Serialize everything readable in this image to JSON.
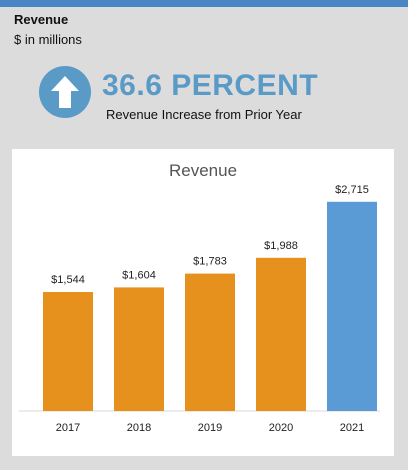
{
  "header": {
    "title": "Revenue",
    "subtitle": "$ in millions"
  },
  "kpi": {
    "icon": "arrow-up-circle-icon",
    "value": "36.6 PERCENT",
    "caption": "Revenue Increase from Prior Year",
    "color": "#5a9ac7"
  },
  "colors": {
    "top_bar": "#4a86c5",
    "bar_default": "#e6901e",
    "bar_highlight": "#5b9bd5"
  },
  "chart_data": {
    "type": "bar",
    "title": "Revenue",
    "categories": [
      "2017",
      "2018",
      "2019",
      "2020",
      "2021"
    ],
    "values": [
      1544,
      1604,
      1783,
      1988,
      2715
    ],
    "value_labels": [
      "$1,544",
      "$1,604",
      "$1,783",
      "$1,988",
      "$2,715"
    ],
    "highlight_index": 4,
    "ylim": [
      0,
      3400
    ],
    "grid": false,
    "legend": "none"
  }
}
